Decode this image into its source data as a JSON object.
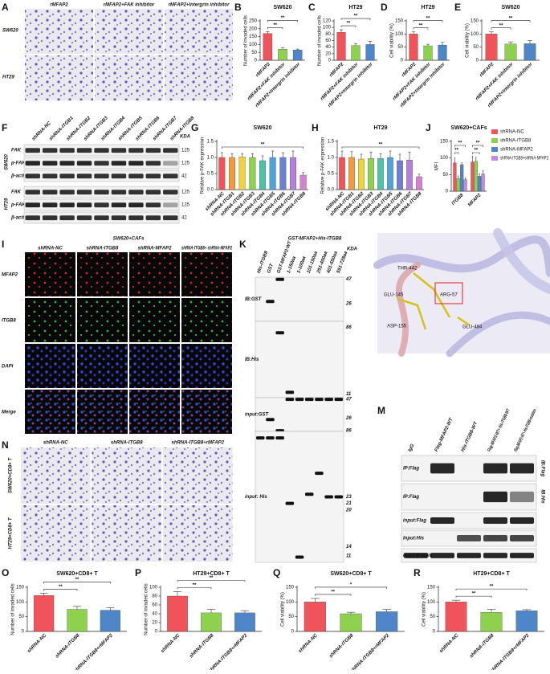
{
  "panel_labels": [
    "A",
    "B",
    "C",
    "D",
    "E",
    "F",
    "G",
    "H",
    "I",
    "J",
    "K",
    "L",
    "M",
    "N",
    "O",
    "P",
    "Q",
    "R"
  ],
  "panel_A": {
    "columns": [
      "rMFAP2",
      "rMFAP2+FAK inhibitor",
      "rMFAP2+Intergrin inhibitor"
    ],
    "rows": [
      "SW620",
      "HT29"
    ]
  },
  "panel_F": {
    "columns": [
      "shRNA-NC",
      "shRNA-ITGB1",
      "shRNA-ITGB2",
      "shRNA-ITGB3",
      "shRNA-ITGB4",
      "shRNA-ITGB5",
      "shRNA-ITGB6",
      "shRNA-ITGB7",
      "shRNA-ITGB8"
    ],
    "unit": "KDA",
    "groups": [
      {
        "name": "SW620",
        "rows": [
          "FAK",
          "p-FAK",
          "β-actin"
        ],
        "sizes": [
          125,
          125,
          42
        ]
      },
      {
        "name": "HT29",
        "rows": [
          "FAK",
          "p-FAK",
          "β-actin"
        ],
        "sizes": [
          125,
          125,
          42
        ]
      }
    ]
  },
  "panel_I": {
    "title": "SW620+CAFs",
    "columns": [
      "shRNA-NC",
      "shRNA-ITGB8",
      "shRNA-MFAP2",
      "shRNA-ITGB8+ shRNA-MFAP2"
    ],
    "rows": [
      "MFAP2",
      "ITGB8",
      "DAPI",
      "Merge"
    ]
  },
  "panel_K": {
    "header": "GST-MFAP2+His-ITGB8",
    "columns": [
      "His-ITGB8",
      "GST",
      "GST-MFAP2-WT",
      "1-150aa",
      "1-100aa",
      "101-150aa",
      "251-400aa",
      "401-550aa",
      "551-728aa"
    ],
    "unit": "KDA",
    "rows": [
      "IB:GST",
      "IB:His",
      "input:GST",
      "input: His"
    ],
    "sizes": [
      [
        47,
        26
      ],
      [
        86,
        11
      ],
      [
        47,
        26,
        86
      ],
      [
        23,
        21,
        20,
        14,
        11
      ]
    ]
  },
  "panel_L": {
    "residues": [
      "THR-442",
      "ARG-57",
      "GLU-145",
      "ASP-155",
      "GLU-484"
    ]
  },
  "panel_M": {
    "columns": [
      "IgG",
      "Flag-MFAP2-WT",
      "His-ITGB8-WT",
      "Flag-MFAP2-WT+ His-ITGB8-WT",
      "Flag-MFAP2-WT+ His-ITGB8-mutation"
    ],
    "rows": [
      "IP:Flag",
      "IP:Flag",
      "input:Flag",
      "Input:His",
      "input:β-actin"
    ],
    "side": [
      "IB:Flag",
      "IB:His"
    ]
  },
  "panel_N": {
    "columns": [
      "shRNA-NC",
      "shRNA-ITGB8",
      "shRNA-ITGB8+rMFAP2"
    ],
    "rows": [
      "SW620+CD8+ T",
      "HT29+CD8+ T"
    ]
  },
  "chart_data": [
    {
      "type": "bar",
      "title": "SW620",
      "y_label": "Number of invaded cells",
      "categories": [
        "rMFAP2",
        "rMFAP2+FAK inhibitor",
        "rMFAP2+Intergrin inhibitor"
      ],
      "colors": [
        "#f0545a",
        "#8ed14f",
        "#4f86c8"
      ],
      "values": [
        170,
        70,
        65
      ],
      "errors": [
        12,
        8,
        6
      ],
      "ylim": [
        0,
        250
      ],
      "yticks": [
        0,
        50,
        100,
        150,
        200,
        250
      ],
      "significance": [
        {
          "label": "**",
          "between": [
            "rMFAP2",
            "rMFAP2+FAK inhibitor"
          ]
        },
        {
          "label": "**",
          "between": [
            "rMFAP2",
            "rMFAP2+Intergrin inhibitor"
          ]
        }
      ]
    },
    {
      "type": "bar",
      "title": "HT29",
      "y_label": "Number of invaded cells",
      "categories": [
        "rMFAP2",
        "rMFAP2+FAK inhibitor",
        "rMFAP2+Intergrin inhibitor"
      ],
      "colors": [
        "#f0545a",
        "#8ed14f",
        "#4f86c8"
      ],
      "values": [
        85,
        45,
        48
      ],
      "errors": [
        8,
        6,
        10
      ],
      "ylim": [
        0,
        120
      ],
      "yticks": [
        0,
        20,
        40,
        60,
        80,
        100,
        120
      ],
      "significance": [
        {
          "label": "**",
          "between": [
            "rMFAP2",
            "rMFAP2+FAK inhibitor"
          ]
        },
        {
          "label": "**",
          "between": [
            "rMFAP2",
            "rMFAP2+Intergrin inhibitor"
          ]
        }
      ]
    },
    {
      "type": "bar",
      "title": "HT29",
      "y_label": "Cell viability (%)",
      "categories": [
        "rMFAP2",
        "rMFAP2+FAK inhibitor",
        "rMFAP2+Intergrin inhibitor"
      ],
      "colors": [
        "#f0545a",
        "#8ed14f",
        "#4f86c8"
      ],
      "values": [
        100,
        55,
        58
      ],
      "errors": [
        8,
        6,
        10
      ],
      "ylim": [
        0,
        150
      ],
      "yticks": [
        0,
        50,
        100,
        150
      ],
      "significance": [
        {
          "label": "**",
          "between": [
            "rMFAP2",
            "rMFAP2+FAK inhibitor"
          ]
        },
        {
          "label": "**",
          "between": [
            "rMFAP2",
            "rMFAP2+Intergrin inhibitor"
          ]
        }
      ]
    },
    {
      "type": "bar",
      "title": "SW620",
      "y_label": "Cell viability (%)",
      "categories": [
        "rMFAP2",
        "rMFAP2+FAK inhibitor",
        "rMFAP2+Intergrin inhibitor"
      ],
      "colors": [
        "#f0545a",
        "#8ed14f",
        "#4f86c8"
      ],
      "values": [
        100,
        62,
        63
      ],
      "errors": [
        8,
        8,
        12
      ],
      "ylim": [
        0,
        150
      ],
      "yticks": [
        0,
        50,
        100,
        150
      ],
      "significance": [
        {
          "label": "**",
          "between": [
            "rMFAP2",
            "rMFAP2+FAK inhibitor"
          ]
        },
        {
          "label": "**",
          "between": [
            "rMFAP2",
            "rMFAP2+Intergrin inhibitor"
          ]
        }
      ]
    },
    {
      "type": "bar",
      "title": "SW620",
      "y_label": "Relative p-FAK expression",
      "categories": [
        "shRNA-NC",
        "shRNA-ITGB1",
        "shRNA-ITGB2",
        "shRNA-ITGB3",
        "shRNA-ITGB4",
        "shRNA-ITGB5",
        "shRNA-ITGB6",
        "shRNA-ITGB7",
        "shRNA-ITGB8"
      ],
      "colors": [
        "#f0545a",
        "#f59a3c",
        "#f0d23c",
        "#8ed14f",
        "#49c2a8",
        "#4fa3d8",
        "#6c7fd1",
        "#b77fd8",
        "#d680d0"
      ],
      "values": [
        1.0,
        1.0,
        1.02,
        1.0,
        0.9,
        1.0,
        1.0,
        1.0,
        0.45
      ],
      "errors": [
        0.15,
        0.12,
        0.1,
        0.12,
        0.15,
        0.2,
        0.15,
        0.2,
        0.08
      ],
      "ylim": [
        0,
        1.5
      ],
      "yticks": [
        {
          "value": 0,
          "label": "0.0"
        },
        0.5,
        {
          "value": 1,
          "label": "1.0"
        },
        1.5
      ],
      "significance": [
        {
          "label": "**",
          "between": [
            "shRNA-NC",
            "shRNA-ITGB8"
          ]
        }
      ]
    },
    {
      "type": "bar",
      "title": "HT29",
      "y_label": "Relative p-FAK expression",
      "categories": [
        "shRNA-NC",
        "shRNA-ITGB1",
        "shRNA-ITGB2",
        "shRNA-ITGB3",
        "shRNA-ITGB4",
        "shRNA-ITGB5",
        "shRNA-ITGB6",
        "shRNA-ITGB7",
        "shRNA-ITGB8"
      ],
      "colors": [
        "#f0545a",
        "#f59a3c",
        "#f0d23c",
        "#8ed14f",
        "#49c2a8",
        "#4fa3d8",
        "#6c7fd1",
        "#b77fd8",
        "#d680d0"
      ],
      "values": [
        1.0,
        1.0,
        0.95,
        0.97,
        0.97,
        1.0,
        0.9,
        0.92,
        0.4
      ],
      "errors": [
        0.2,
        0.18,
        0.15,
        0.2,
        0.15,
        0.2,
        0.2,
        0.25,
        0.08
      ],
      "ylim": [
        0,
        1.5
      ],
      "yticks": [
        {
          "value": 0,
          "label": "0.0"
        },
        0.5,
        {
          "value": 1,
          "label": "1.0"
        },
        1.5
      ],
      "significance": [
        {
          "label": "**",
          "between": [
            "shRNA-NC",
            "shRNA-ITGB8"
          ]
        }
      ]
    },
    {
      "type": "grouped_bar",
      "title": "SW620+CAFs",
      "y_label": "MFI",
      "categories": [
        "ITGB8",
        "MFAP2"
      ],
      "series": [
        {
          "name": "shRNA-NC",
          "color": "#f0545a",
          "values": [
            85,
            88
          ],
          "errors": [
            15,
            18
          ]
        },
        {
          "name": "shRNA-ITGB8",
          "color": "#8ed14f",
          "values": [
            38,
            90
          ],
          "errors": [
            8,
            12
          ]
        },
        {
          "name": "shRNA-MFAP2",
          "color": "#4f86c8",
          "values": [
            80,
            45
          ],
          "errors": [
            6,
            8
          ]
        },
        {
          "name": "shRNA-ITGB8+shRNA-MFAP2",
          "color": "#c38be0",
          "values": [
            35,
            52
          ],
          "errors": [
            5,
            10
          ]
        }
      ],
      "ylim": [
        0,
        150
      ],
      "yticks": [
        0,
        50,
        100,
        150
      ],
      "legend": "right",
      "significance": [
        {
          "label": "**",
          "category": "ITGB8",
          "between": [
            "shRNA-NC",
            "shRNA-ITGB8"
          ]
        },
        {
          "label": "**",
          "category": "ITGB8",
          "between": [
            "shRNA-NC",
            "shRNA-ITGB8+shRNA-MFAP2"
          ]
        },
        {
          "label": "**",
          "category": "MFAP2",
          "between": [
            "shRNA-NC",
            "shRNA-MFAP2"
          ]
        },
        {
          "label": "**",
          "category": "MFAP2",
          "between": [
            "shRNA-NC",
            "shRNA-ITGB8+shRNA-MFAP2"
          ]
        }
      ]
    },
    {
      "type": "bar",
      "title": "SW620+CD8+ T",
      "y_label": "Number of invaded cells",
      "categories": [
        "shRNA-NC",
        "shRNA-ITGB8",
        "shRNA-ITGB8+rMFAP2"
      ],
      "colors": [
        "#f0545a",
        "#8ed14f",
        "#4f86c8"
      ],
      "values": [
        122,
        75,
        72
      ],
      "errors": [
        8,
        10,
        8
      ],
      "ylim": [
        0,
        150
      ],
      "yticks": [
        0,
        50,
        100,
        150
      ],
      "significance": [
        {
          "label": "**",
          "between": [
            "shRNA-NC",
            "shRNA-ITGB8"
          ]
        },
        {
          "label": "**",
          "between": [
            "shRNA-NC",
            "shRNA-ITGB8+rMFAP2"
          ]
        }
      ]
    },
    {
      "type": "bar",
      "title": "HT29+CD8+ T",
      "y_label": "Number of invaded cells",
      "categories": [
        "shRNA-NC",
        "shRNA-ITGB8",
        "shRNA-ITGB8+rMFAP2"
      ],
      "colors": [
        "#f0545a",
        "#8ed14f",
        "#4f86c8"
      ],
      "values": [
        80,
        42,
        42
      ],
      "errors": [
        10,
        8,
        5
      ],
      "ylim": [
        0,
        100
      ],
      "yticks": [
        0,
        20,
        40,
        60,
        80,
        100
      ],
      "significance": [
        {
          "label": "**",
          "between": [
            "shRNA-NC",
            "shRNA-ITGB8"
          ]
        },
        {
          "label": "**",
          "between": [
            "shRNA-NC",
            "shRNA-ITGB8+rMFAP2"
          ]
        }
      ]
    },
    {
      "type": "bar",
      "title": "SW620+CD8+ T",
      "y_label": "Cell viability (%)",
      "categories": [
        "shRNA-NC",
        "shRNA-ITGB8",
        "shRNA-ITGB8+rMFAP2"
      ],
      "colors": [
        "#f0545a",
        "#8ed14f",
        "#4f86c8"
      ],
      "values": [
        100,
        60,
        67
      ],
      "errors": [
        12,
        5,
        8
      ],
      "ylim": [
        0,
        150
      ],
      "yticks": [
        0,
        50,
        100,
        150
      ],
      "significance": [
        {
          "label": "**",
          "between": [
            "shRNA-NC",
            "shRNA-ITGB8"
          ]
        },
        {
          "label": "*",
          "between": [
            "shRNA-NC",
            "shRNA-ITGB8+rMFAP2"
          ]
        }
      ]
    },
    {
      "type": "bar",
      "title": "HT29+CD8+ T",
      "y_label": "Cell viability (%)",
      "categories": [
        "shRNA-NC",
        "shRNA-ITGB8",
        "shRNA-ITGB8+rMFAP2"
      ],
      "colors": [
        "#f0545a",
        "#8ed14f",
        "#4f86c8"
      ],
      "values": [
        100,
        65,
        70
      ],
      "errors": [
        6,
        10,
        4
      ],
      "ylim": [
        0,
        150
      ],
      "yticks": [
        0,
        50,
        100,
        150
      ],
      "significance": [
        {
          "label": "**",
          "between": [
            "shRNA-NC",
            "shRNA-ITGB8"
          ]
        },
        {
          "label": "**",
          "between": [
            "shRNA-NC",
            "shRNA-ITGB8+rMFAP2"
          ]
        }
      ]
    }
  ]
}
